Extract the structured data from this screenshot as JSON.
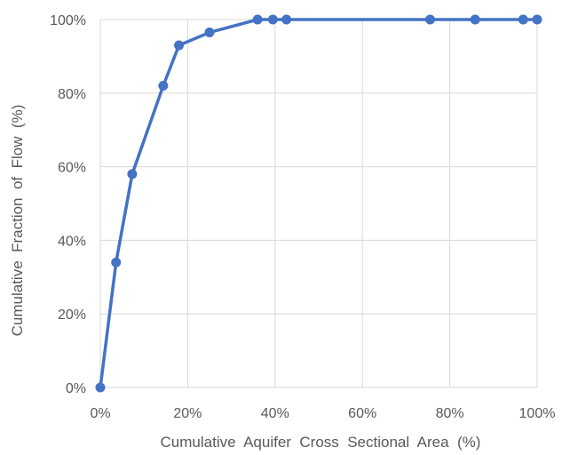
{
  "chart_data": {
    "type": "line",
    "title": "",
    "xlabel": "Cumulative  Aquifer  Cross  Sectional  Area  (%)",
    "ylabel": "Cumulative  Fraction  of  Flow  (%)",
    "xlim": [
      0,
      100
    ],
    "ylim": [
      0,
      100
    ],
    "x_ticks": [
      "0%",
      "20%",
      "40%",
      "60%",
      "80%",
      "100%"
    ],
    "y_ticks": [
      "0%",
      "20%",
      "40%",
      "60%",
      "80%",
      "100%"
    ],
    "grid": true,
    "legend": "none",
    "series": [
      {
        "color": "#4472C4",
        "x": [
          0,
          3.6,
          7.3,
          14.4,
          18,
          25,
          36,
          39.5,
          42.6,
          75.5,
          85.8,
          96.8,
          100
        ],
        "y": [
          0,
          34,
          58,
          82,
          93,
          96.5,
          100,
          100,
          100,
          100,
          100,
          100,
          100
        ]
      }
    ]
  }
}
